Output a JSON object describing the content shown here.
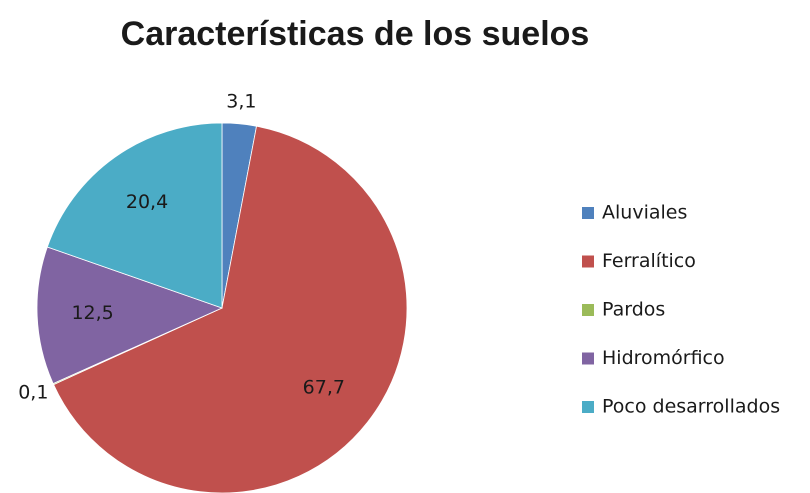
{
  "chart_data": {
    "type": "pie",
    "title": "Características de los suelos",
    "categories": [
      "Aluviales",
      "Ferralítico",
      "Pardos",
      "Hidromórfico",
      "Poco desarrollados"
    ],
    "values": [
      3.1,
      67.7,
      0.1,
      12.5,
      20.4
    ],
    "value_labels": [
      "3,1",
      "67,7",
      "0,1",
      "12,5",
      "20,4"
    ],
    "colors": [
      "#4f81bd",
      "#c0504d",
      "#9bbb59",
      "#8064a2",
      "#4bacc6"
    ],
    "legend": "right"
  }
}
